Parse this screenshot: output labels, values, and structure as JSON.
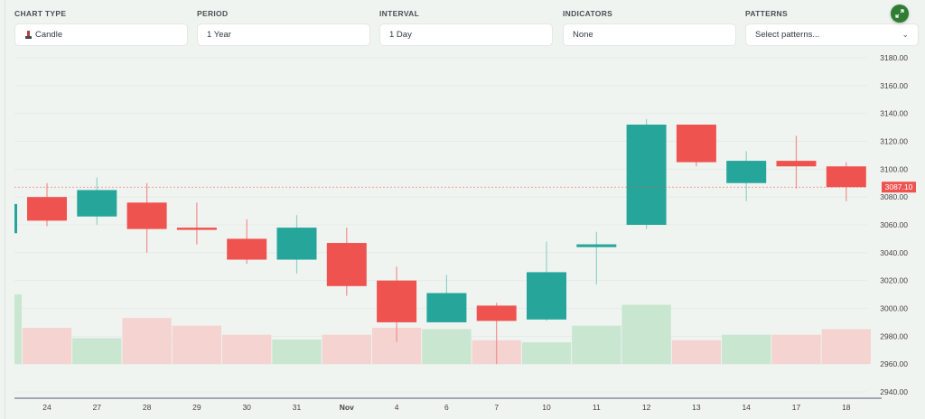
{
  "controls": {
    "chart_type": {
      "label": "CHART TYPE",
      "value": "Candle",
      "icon": "candle-icon"
    },
    "period": {
      "label": "PERIOD",
      "value": "1 Year"
    },
    "interval": {
      "label": "INTERVAL",
      "value": "1 Day"
    },
    "indicators": {
      "label": "INDICATORS",
      "value": "None"
    },
    "patterns": {
      "label": "PATTERNS",
      "placeholder": "Select patterns...",
      "icon": "chevron-down-icon"
    },
    "expand_button": {
      "icon": "expand-icon",
      "color": "#2e7d32"
    }
  },
  "colors": {
    "up": "#26a69a",
    "down": "#ef5350",
    "volume_up": "#c8e6d0",
    "volume_down": "#f4d3d1",
    "background": "#f0f4f1"
  },
  "chart_data": {
    "type": "candlestick",
    "title": "",
    "xlabel": "",
    "ylabel": "",
    "ylim": [
      2940,
      3180
    ],
    "y_ticks": [
      "3180.00",
      "3160.00",
      "3140.00",
      "3120.00",
      "3100.00",
      "3080.00",
      "3060.00",
      "3040.00",
      "3020.00",
      "3000.00",
      "2980.00",
      "2960.00",
      "2940.00"
    ],
    "current_price_label": "3087.10",
    "current_price": 3087.1,
    "categories": [
      "24",
      "27",
      "28",
      "29",
      "30",
      "31",
      "Nov",
      "4",
      "6",
      "7",
      "10",
      "11",
      "12",
      "13",
      "14",
      "17",
      "18"
    ],
    "partial_first_candle": {
      "open": 3054,
      "close": 3075,
      "high": 3075,
      "low": 3054,
      "direction": "up"
    },
    "candles": [
      {
        "date": "24",
        "open": 3080,
        "close": 3063,
        "high": 3090,
        "low": 3059
      },
      {
        "date": "27",
        "open": 3066,
        "close": 3085,
        "high": 3094,
        "low": 3060
      },
      {
        "date": "28",
        "open": 3076,
        "close": 3057,
        "high": 3090,
        "low": 3040
      },
      {
        "date": "29",
        "open": 3058,
        "close": 3057,
        "high": 3076,
        "low": 3046
      },
      {
        "date": "30",
        "open": 3050,
        "close": 3035,
        "high": 3064,
        "low": 3032
      },
      {
        "date": "31",
        "open": 3035,
        "close": 3058,
        "high": 3067,
        "low": 3025
      },
      {
        "date": "Nov",
        "open": 3047,
        "close": 3016,
        "high": 3058,
        "low": 3009
      },
      {
        "date": "4",
        "open": 3020,
        "close": 2990,
        "high": 3030,
        "low": 2976
      },
      {
        "date": "6",
        "open": 2990,
        "close": 3011,
        "high": 3024,
        "low": 2990
      },
      {
        "date": "7",
        "open": 3002,
        "close": 2991,
        "high": 3004,
        "low": 2960
      },
      {
        "date": "10",
        "open": 2992,
        "close": 3026,
        "high": 3048,
        "low": 2991
      },
      {
        "date": "11",
        "open": 3044,
        "close": 3046,
        "high": 3055,
        "low": 3017
      },
      {
        "date": "12",
        "open": 3060,
        "close": 3132,
        "high": 3136,
        "low": 3057
      },
      {
        "date": "13",
        "open": 3132,
        "close": 3105,
        "high": 3132,
        "low": 3102
      },
      {
        "date": "14",
        "open": 3090,
        "close": 3106,
        "high": 3113,
        "low": 3077
      },
      {
        "date": "17",
        "open": 3106,
        "close": 3102,
        "high": 3124,
        "low": 3086
      },
      {
        "date": "18",
        "open": 3102,
        "close": 3087.1,
        "high": 3105,
        "low": 3077
      }
    ],
    "volume_relative": [
      0.52,
      0.37,
      0.66,
      0.55,
      0.42,
      0.35,
      0.42,
      0.52,
      0.5,
      0.34,
      0.31,
      0.55,
      0.85,
      0.34,
      0.42,
      0.42,
      0.5
    ],
    "partial_first_volume": 1.0,
    "grid": true,
    "legend": "none"
  }
}
